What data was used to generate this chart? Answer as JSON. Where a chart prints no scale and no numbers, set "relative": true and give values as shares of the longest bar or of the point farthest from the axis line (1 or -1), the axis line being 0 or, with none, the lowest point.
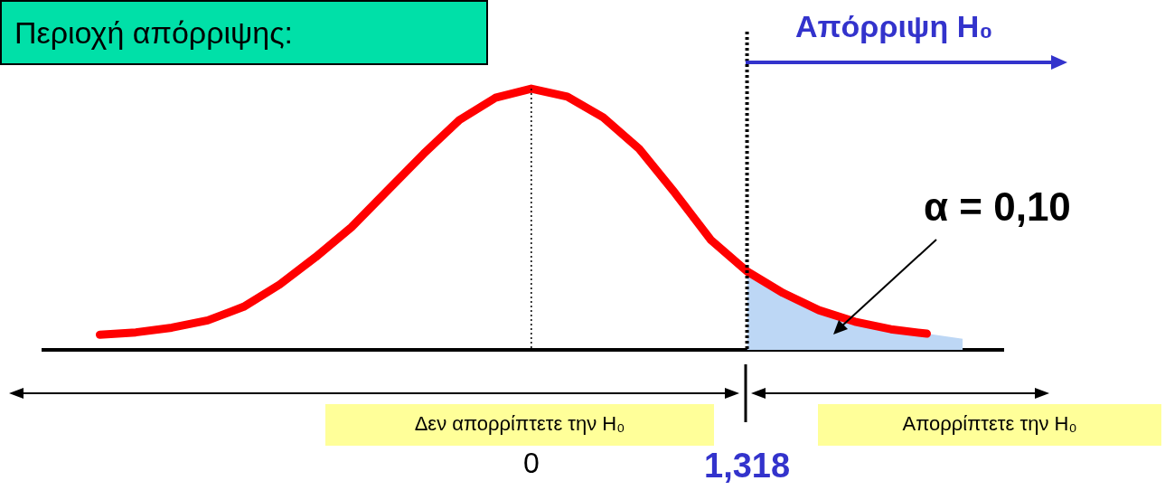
{
  "chart_data": {
    "type": "line",
    "title": "Περιοχή απόρριψης:",
    "relative": true,
    "marker": "none",
    "categories": [
      null,
      null,
      null,
      null,
      null,
      null,
      null,
      null,
      null,
      null,
      null,
      null,
      "0",
      null,
      null,
      null,
      null,
      null,
      "1,318",
      null,
      null,
      null,
      null,
      null,
      null
    ],
    "series": [
      {
        "type": "area",
        "color": "#bdd7f5",
        "values": [
          null,
          null,
          null,
          null,
          null,
          null,
          null,
          null,
          null,
          null,
          null,
          null,
          null,
          null,
          null,
          null,
          null,
          null,
          0.301,
          0.218,
          0.152,
          0.108,
          0.079,
          0.062,
          0.042
        ]
      },
      {
        "color": "#ff0000",
        "values": [
          0.058,
          0.067,
          0.085,
          0.113,
          0.165,
          0.25,
          0.355,
          0.47,
          0.61,
          0.75,
          0.88,
          0.965,
          1,
          0.97,
          0.89,
          0.77,
          0.6,
          0.42,
          0.301,
          0.218,
          0.152,
          0.108,
          0.079,
          0.062,
          null
        ]
      }
    ],
    "ref_lines": [
      {
        "axis": "x",
        "value": "0",
        "line_style": "dotted",
        "color": "#000000"
      },
      {
        "axis": "x",
        "value": "1,318",
        "line_style": "dotted",
        "color": "#000000"
      }
    ],
    "annotations": [
      "Απόρριψη H₀",
      "α = 0,10",
      "Δεν απορρίπτετε την H₀",
      "Απορρίπτετε την H₀"
    ]
  }
}
